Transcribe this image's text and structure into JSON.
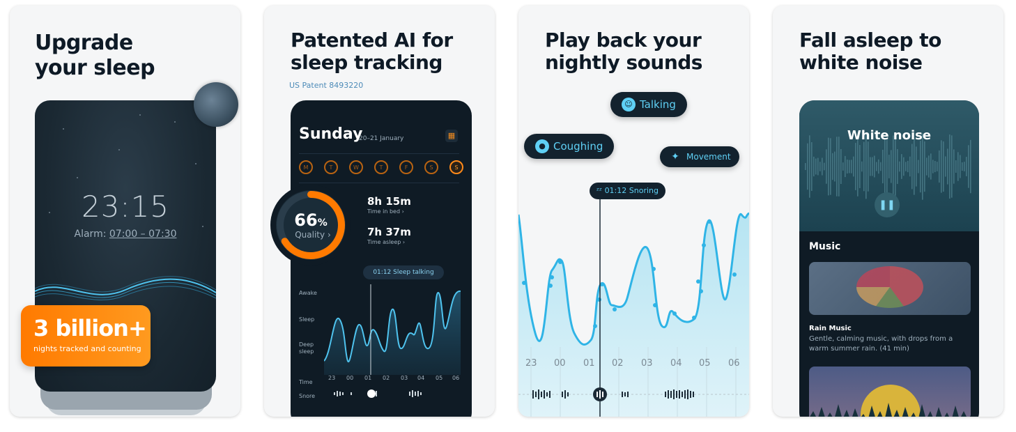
{
  "cards": [
    {
      "title": "Upgrade\nyour sleep",
      "clock": "23:15",
      "alarm_label": "Alarm: ",
      "alarm_value": "07:00 – 07:30",
      "badge_big": "3 billion+",
      "badge_small": "nights tracked and counting"
    },
    {
      "title": "Patented AI for\nsleep tracking",
      "patent": "US Patent 8493220",
      "day_name": "Sunday",
      "date_range": "20–21 January",
      "days": [
        "M",
        "T",
        "W",
        "T",
        "F",
        "S",
        "S"
      ],
      "quality_value": "66",
      "quality_unit": "%",
      "quality_label": "Quality",
      "quality_fraction": 0.66,
      "time_in_bed": "8h 15m",
      "time_in_bed_label": "Time in bed",
      "time_asleep": "7h 37m",
      "time_asleep_label": "Time asleep",
      "tip": "01:12  Sleep talking",
      "y_labels": [
        "Awake",
        "Sleep",
        "Deep\nsleep"
      ],
      "time_label": "Time",
      "snore_label": "Snore",
      "hours": [
        "23",
        "00",
        "01",
        "02",
        "03",
        "04",
        "05",
        "06"
      ]
    },
    {
      "title": "Play back your\nnightly sounds",
      "chips": {
        "talking": "Talking",
        "coughing": "Coughing",
        "movement": "Movement"
      },
      "snore_tip": "01:12 Snoring",
      "hours": [
        "23",
        "00",
        "01",
        "02",
        "03",
        "04",
        "05",
        "06"
      ]
    },
    {
      "title": "Fall asleep to\nwhite noise",
      "now_playing": "White noise",
      "section": "Music",
      "track_title": "Rain Music",
      "track_desc": "Gentle, calming music, with drops from a warm summer rain. (41 min)"
    }
  ],
  "colors": {
    "accent_orange": "#ff8a1a",
    "accent_blue": "#4fc3ee",
    "dark_bg": "#0f1b25"
  }
}
